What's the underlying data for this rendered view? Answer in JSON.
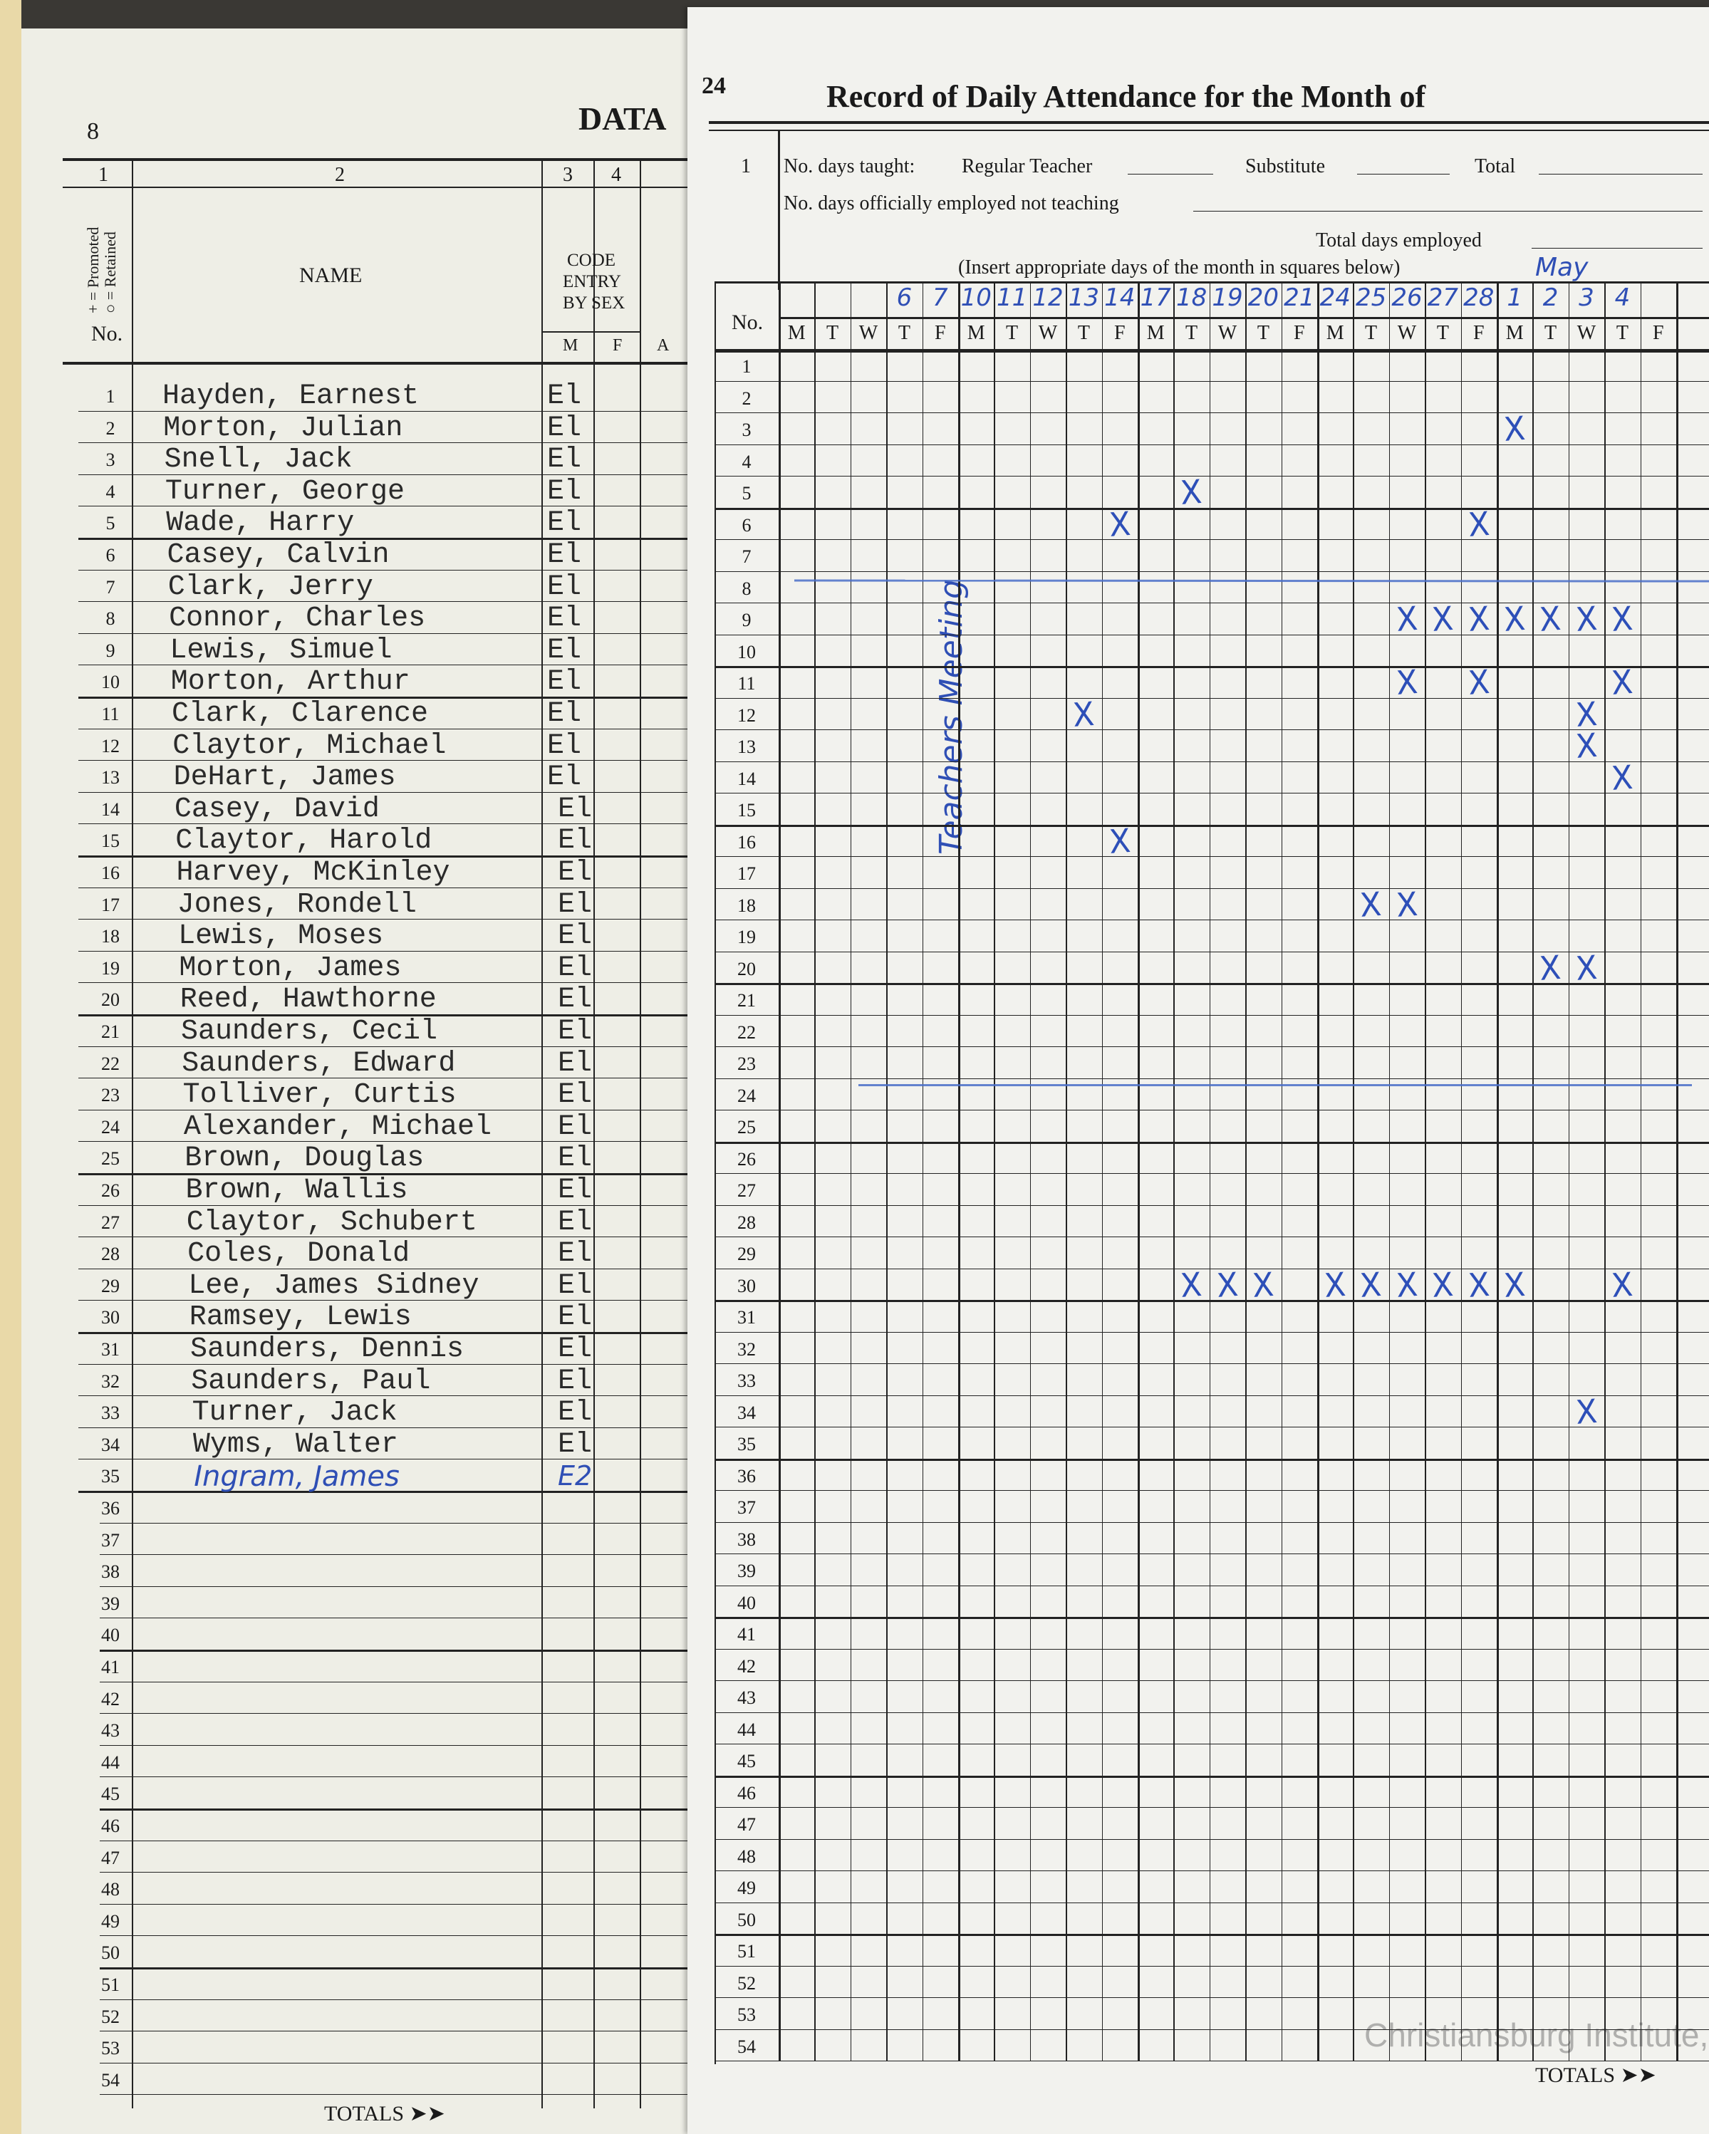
{
  "left_page": {
    "page_number": "8",
    "title_fragment": "DATA",
    "column_numbers": [
      "1",
      "2",
      "3",
      "4"
    ],
    "legend_promoted": "+ = Promoted",
    "legend_retained": "○ = Retained",
    "no_label": "No.",
    "name_label": "NAME",
    "code_label": [
      "CODE",
      "ENTRY",
      "BY SEX"
    ],
    "sex_m": "M",
    "sex_f": "F",
    "col_a": "A",
    "totals_label": "TOTALS ➤➤",
    "students": [
      {
        "name": "Hayden, Earnest",
        "code": "El"
      },
      {
        "name": "Morton, Julian",
        "code": "El"
      },
      {
        "name": "Snell, Jack",
        "code": "El"
      },
      {
        "name": "Turner, George",
        "code": "El"
      },
      {
        "name": "Wade, Harry",
        "code": "El"
      },
      {
        "name": "Casey, Calvin",
        "code": "El"
      },
      {
        "name": "Clark, Jerry",
        "code": "El"
      },
      {
        "name": "Connor, Charles",
        "code": "El"
      },
      {
        "name": "Lewis, Simuel",
        "code": "El"
      },
      {
        "name": "Morton, Arthur",
        "code": "El"
      },
      {
        "name": "Clark, Clarence",
        "code": "El"
      },
      {
        "name": "Claytor, Michael",
        "code": "El"
      },
      {
        "name": "DeHart, James",
        "code": "El"
      },
      {
        "name": "Casey, David",
        "code": "El"
      },
      {
        "name": "Claytor, Harold",
        "code": "El"
      },
      {
        "name": "Harvey, McKinley",
        "code": "El"
      },
      {
        "name": "Jones, Rondell",
        "code": "El"
      },
      {
        "name": "Lewis, Moses",
        "code": "El"
      },
      {
        "name": "Morton, James",
        "code": "El"
      },
      {
        "name": "Reed, Hawthorne",
        "code": "El"
      },
      {
        "name": "Saunders, Cecil",
        "code": "El"
      },
      {
        "name": "Saunders, Edward",
        "code": "El"
      },
      {
        "name": "Tolliver, Curtis",
        "code": "El"
      },
      {
        "name": "Alexander, Michael",
        "code": "El"
      },
      {
        "name": "Brown, Douglas",
        "code": "El"
      },
      {
        "name": "Brown, Wallis",
        "code": "El"
      },
      {
        "name": "Claytor, Schubert",
        "code": "El"
      },
      {
        "name": "Coles, Donald",
        "code": "El"
      },
      {
        "name": "Lee, James Sidney",
        "code": "El"
      },
      {
        "name": "Ramsey, Lewis",
        "code": "El"
      },
      {
        "name": "Saunders, Dennis",
        "code": "El"
      },
      {
        "name": "Saunders, Paul",
        "code": "El"
      },
      {
        "name": "Turner, Jack",
        "code": "El"
      },
      {
        "name": "Wyms, Walter",
        "code": "El"
      },
      {
        "name": "Ingram, James",
        "code": "E2",
        "handwritten": true
      }
    ],
    "row_count": 54
  },
  "right_page": {
    "page_number": "24",
    "title": "Record of Daily Attendance for the Month of",
    "row1_label": "1",
    "days_taught_label": "No. days taught:",
    "regular_teacher_label": "Regular Teacher",
    "substitute_label": "Substitute",
    "total_label": "Total",
    "employed_not_teaching_label": "No. days officially employed not teaching",
    "total_days_employed_label": "Total days employed",
    "insert_days_note": "(Insert appropriate days of the month in squares below)",
    "month": "May",
    "no_label": "No.",
    "weekday_letters": [
      "M",
      "T",
      "W",
      "T",
      "F",
      "M",
      "T",
      "W",
      "T",
      "F",
      "M",
      "T",
      "W",
      "T",
      "F",
      "M",
      "T",
      "W",
      "T",
      "F",
      "M",
      "T",
      "W",
      "T",
      "F"
    ],
    "dates": [
      "",
      "",
      "",
      "6",
      "7",
      "10",
      "11",
      "12",
      "13",
      "14",
      "17",
      "18",
      "19",
      "20",
      "21",
      "24",
      "25",
      "26",
      "27",
      "28",
      "1",
      "2",
      "3",
      "4",
      ""
    ],
    "annotation": "Teachers Meeting",
    "totals_label": "TOTALS ➤➤",
    "watermark": "Christiansburg Institute, Inc",
    "absence_mark": "X",
    "absences": [
      {
        "row": 3,
        "cols": [
          20
        ]
      },
      {
        "row": 5,
        "cols": [
          11
        ]
      },
      {
        "row": 6,
        "cols": [
          9,
          19
        ]
      },
      {
        "row": 9,
        "cols": [
          17,
          18,
          19,
          20,
          21,
          22,
          23
        ]
      },
      {
        "row": 11,
        "cols": [
          17,
          19,
          23
        ]
      },
      {
        "row": 12,
        "cols": [
          8,
          22
        ]
      },
      {
        "row": 13,
        "cols": [
          22
        ]
      },
      {
        "row": 14,
        "cols": [
          23
        ]
      },
      {
        "row": 16,
        "cols": [
          9
        ]
      },
      {
        "row": 18,
        "cols": [
          16,
          17
        ]
      },
      {
        "row": 20,
        "cols": [
          21,
          22
        ]
      },
      {
        "row": 30,
        "cols": [
          11,
          12,
          13,
          15,
          16,
          17,
          18,
          19,
          20,
          23
        ]
      },
      {
        "row": 34,
        "cols": [
          22
        ]
      }
    ],
    "ink_color": "#2d4fb8"
  }
}
